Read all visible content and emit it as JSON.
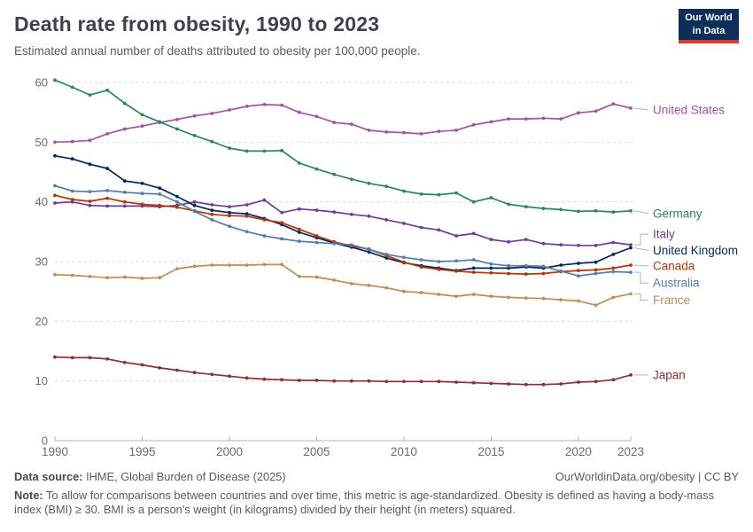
{
  "header": {
    "title": "Death rate from obesity, 1990 to 2023",
    "subtitle": "Estimated annual number of deaths attributed to obesity per 100,000 people.",
    "logo": {
      "line1": "Our World",
      "line2": "in Data",
      "bg_color": "#0e2f5a",
      "accent_color": "#dc3830"
    }
  },
  "chart_data": {
    "type": "line",
    "title": "Death rate from obesity, 1990 to 2023",
    "xlabel": "",
    "ylabel": "",
    "xlim": [
      1990,
      2023
    ],
    "ylim": [
      0,
      60
    ],
    "xticks": [
      1990,
      1995,
      2000,
      2005,
      2010,
      2015,
      2020,
      2023
    ],
    "yticks": [
      0,
      10,
      20,
      30,
      40,
      50,
      60
    ],
    "grid": "horizontal-dashed",
    "legend_position": "right-end-labels",
    "style": {
      "grid_color": "#dadada",
      "axis_color": "#b5b5b5",
      "tick_color": "#6b6b6b",
      "connector_color": "#b4b4b4"
    },
    "years": [
      1990,
      1991,
      1992,
      1993,
      1994,
      1995,
      1996,
      1997,
      1998,
      1999,
      2000,
      2001,
      2002,
      2003,
      2004,
      2005,
      2006,
      2007,
      2008,
      2009,
      2010,
      2011,
      2012,
      2013,
      2014,
      2015,
      2016,
      2017,
      2018,
      2019,
      2020,
      2021,
      2022,
      2023
    ],
    "series": [
      {
        "name": "United States",
        "color": "#A2559C",
        "label_dy": 2,
        "values": [
          50.0,
          50.1,
          50.3,
          51.4,
          52.2,
          52.7,
          53.3,
          53.8,
          54.4,
          54.8,
          55.4,
          56.0,
          56.3,
          56.2,
          55.0,
          54.3,
          53.3,
          53.0,
          52.0,
          51.7,
          51.6,
          51.4,
          51.8,
          52.0,
          52.9,
          53.4,
          53.9,
          53.9,
          54.0,
          53.9,
          54.9,
          55.2,
          56.4,
          55.7
        ]
      },
      {
        "name": "Germany",
        "color": "#2C8465",
        "label_dy": 3,
        "values": [
          60.4,
          59.2,
          57.9,
          58.7,
          56.5,
          54.6,
          53.4,
          52.2,
          51.1,
          50.1,
          49.0,
          48.5,
          48.5,
          48.6,
          46.5,
          45.5,
          44.6,
          43.8,
          43.1,
          42.6,
          41.8,
          41.3,
          41.2,
          41.5,
          40.0,
          40.7,
          39.6,
          39.2,
          38.9,
          38.7,
          38.4,
          38.5,
          38.3,
          38.5
        ]
      },
      {
        "name": "Italy",
        "color": "#6D3E91",
        "label_dy": -12,
        "values": [
          39.8,
          40.0,
          39.4,
          39.3,
          39.3,
          39.3,
          39.2,
          39.4,
          40.0,
          39.5,
          39.2,
          39.5,
          40.3,
          38.2,
          38.8,
          38.6,
          38.3,
          37.9,
          37.6,
          37.0,
          36.4,
          35.7,
          35.3,
          34.3,
          34.7,
          33.7,
          33.3,
          33.7,
          33.0,
          32.8,
          32.7,
          32.7,
          33.2,
          32.8
        ]
      },
      {
        "name": "United Kingdom",
        "color": "#00295B",
        "label_dy": 3,
        "values": [
          47.7,
          47.2,
          46.3,
          45.6,
          43.5,
          43.1,
          42.3,
          40.9,
          39.4,
          38.6,
          38.2,
          38.0,
          37.2,
          36.2,
          34.9,
          34.0,
          33.1,
          32.4,
          31.6,
          30.6,
          29.8,
          29.3,
          28.9,
          28.5,
          28.9,
          28.9,
          28.9,
          29.1,
          28.9,
          29.4,
          29.7,
          29.9,
          31.2,
          32.3
        ]
      },
      {
        "name": "Canada",
        "color": "#B13507",
        "label_dy": 1,
        "values": [
          41.1,
          40.4,
          40.1,
          40.6,
          40.0,
          39.6,
          39.4,
          39.1,
          38.5,
          37.9,
          37.7,
          37.6,
          37.0,
          36.5,
          35.4,
          34.3,
          33.3,
          32.6,
          32.1,
          31.0,
          29.9,
          29.1,
          28.7,
          28.4,
          28.2,
          28.1,
          28.0,
          27.9,
          28.0,
          28.3,
          28.5,
          28.6,
          28.9,
          29.4
        ]
      },
      {
        "name": "Australia",
        "color": "#577CA8",
        "label_dy": 12,
        "values": [
          42.7,
          41.8,
          41.7,
          41.9,
          41.6,
          41.4,
          41.3,
          40.0,
          38.4,
          37.0,
          35.9,
          35.0,
          34.3,
          33.8,
          33.4,
          33.2,
          33.0,
          32.8,
          32.0,
          31.2,
          30.7,
          30.3,
          30.0,
          30.1,
          30.3,
          29.6,
          29.3,
          29.3,
          29.2,
          28.4,
          27.6,
          28.0,
          28.3,
          28.2
        ]
      },
      {
        "name": "France",
        "color": "#BC8E5A",
        "label_dy": 7,
        "values": [
          27.8,
          27.7,
          27.5,
          27.3,
          27.4,
          27.2,
          27.3,
          28.8,
          29.2,
          29.4,
          29.4,
          29.4,
          29.5,
          29.5,
          27.5,
          27.4,
          26.9,
          26.3,
          26.0,
          25.6,
          25.0,
          24.8,
          24.5,
          24.2,
          24.5,
          24.2,
          24.0,
          23.9,
          23.8,
          23.6,
          23.4,
          22.7,
          24.0,
          24.6
        ]
      },
      {
        "name": "Japan",
        "color": "#883039",
        "label_dy": 0,
        "values": [
          14.0,
          13.9,
          13.9,
          13.7,
          13.1,
          12.7,
          12.2,
          11.8,
          11.4,
          11.1,
          10.8,
          10.5,
          10.3,
          10.2,
          10.1,
          10.1,
          10.0,
          10.0,
          10.0,
          9.9,
          9.9,
          9.9,
          9.9,
          9.8,
          9.7,
          9.6,
          9.5,
          9.4,
          9.4,
          9.5,
          9.8,
          9.9,
          10.2,
          11.0
        ]
      }
    ]
  },
  "footer": {
    "source_label": "Data source:",
    "source_text": " IHME, Global Burden of Disease (2025)",
    "rights": "OurWorldinData.org/obesity | CC BY",
    "note_label": "Note:",
    "note_text": " To allow for comparisons between countries and over time, this metric is age-standardized. Obesity is defined as having a body-mass index (BMI) ≥ 30. BMI is a person's weight (in kilograms) divided by their height (in meters) squared."
  }
}
